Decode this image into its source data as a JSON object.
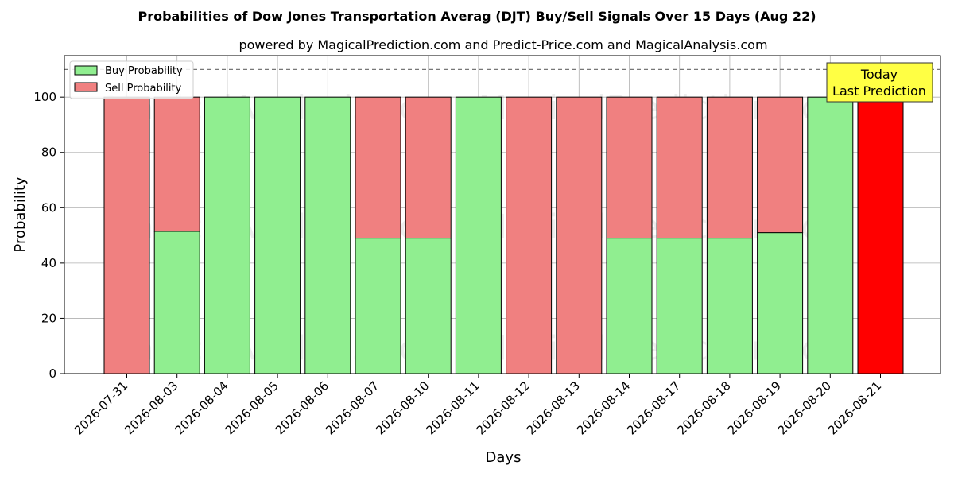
{
  "chart_data": {
    "type": "bar",
    "stacked": true,
    "title": "Probabilities of Dow Jones Transportation Averag (DJT) Buy/Sell Signals Over 15 Days (Aug 22)",
    "subtitle": "powered by MagicalPrediction.com and Predict-Price.com and MagicalAnalysis.com",
    "xlabel": "Days",
    "ylabel": "Probability",
    "ylim": [
      0,
      115
    ],
    "yticks": [
      0,
      20,
      40,
      60,
      80,
      100
    ],
    "grid": true,
    "legend_position": "top-left",
    "reference_line": 110,
    "categories": [
      "2026-07-31",
      "2026-08-03",
      "2026-08-04",
      "2026-08-05",
      "2026-08-06",
      "2026-08-07",
      "2026-08-10",
      "2026-08-11",
      "2026-08-12",
      "2026-08-13",
      "2026-08-14",
      "2026-08-17",
      "2026-08-18",
      "2026-08-19",
      "2026-08-20",
      "2026-08-21"
    ],
    "series": [
      {
        "name": "Buy Probability",
        "color": "#90ee90",
        "values": [
          0,
          51.5,
          100,
          100,
          100,
          49,
          49,
          100,
          0,
          0,
          49,
          49,
          49,
          51,
          100,
          0
        ]
      },
      {
        "name": "Sell Probability",
        "color": "#f08080",
        "values": [
          100,
          48.5,
          0,
          0,
          0,
          51,
          51,
          0,
          100,
          100,
          51,
          51,
          51,
          49,
          0,
          100
        ]
      }
    ],
    "highlight": {
      "category": "2026-08-21",
      "color": "#ff0000"
    },
    "annotation": {
      "line1": "Today",
      "line2": "Last Prediction",
      "color": "#ffff44"
    },
    "watermarks": [
      "MagicalAnalysis.com",
      "MagicalPrediction.com"
    ]
  }
}
